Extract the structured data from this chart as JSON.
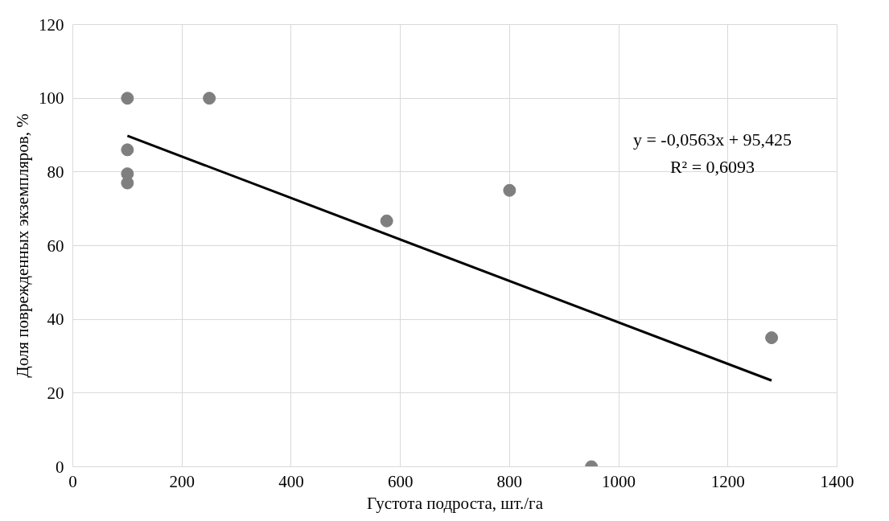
{
  "chart_data": {
    "type": "scatter",
    "xlabel": "Густота подроста, шт./га",
    "ylabel": "Доля поврежденных экземпляров, %",
    "xlim": [
      0,
      1400
    ],
    "xticks": [
      0,
      200,
      400,
      600,
      800,
      1000,
      1200,
      1400
    ],
    "ylim": [
      0,
      120
    ],
    "yticks": [
      0,
      20,
      40,
      60,
      80,
      100,
      120
    ],
    "grid": true,
    "series": [
      {
        "marker": "circle",
        "color": "#7f7f7f",
        "x": [
          100,
          100,
          100,
          100,
          250,
          575,
          800,
          950,
          1280
        ],
        "values": [
          100,
          86,
          79.5,
          77,
          100,
          66.7,
          75,
          0,
          35
        ]
      },
      {
        "type": "line",
        "marker": "none",
        "color": "#000000",
        "x": [
          100,
          1280
        ],
        "values": [
          89.8,
          23.4
        ]
      }
    ],
    "annotations": [
      "y = -0,0563x + 95,425",
      "R² = 0,6093"
    ]
  }
}
